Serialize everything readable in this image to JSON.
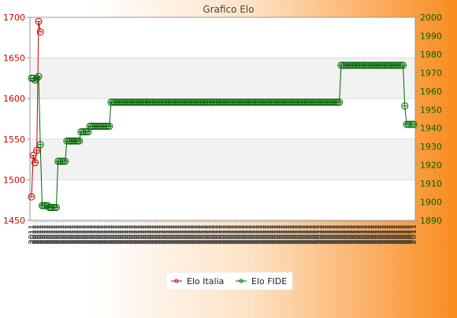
{
  "chart_data": {
    "type": "line",
    "title": "Grafico Elo",
    "left_axis": {
      "ylim": [
        1450,
        1700
      ],
      "ticks": [
        1450,
        1500,
        1550,
        1600,
        1650,
        1700
      ],
      "color": "#cc0000"
    },
    "right_axis": {
      "ylim": [
        1890,
        2000
      ],
      "ticks": [
        1890,
        1900,
        1910,
        1920,
        1930,
        1940,
        1950,
        1960,
        1970,
        1980,
        1990,
        2000
      ],
      "color": "#006600"
    },
    "grid": true,
    "legend": "bottom-center",
    "x_tick_label": "2011",
    "series": [
      {
        "name": "Elo Italia",
        "axis": "left",
        "color": "#cc0000",
        "values": [
          1479,
          1530,
          1521,
          1536,
          1695,
          1682
        ]
      },
      {
        "name": "Elo FIDE",
        "axis": "right",
        "color": "#006600",
        "values": [
          1967,
          1967,
          1966,
          1967,
          1968,
          1931,
          1898,
          1898,
          1898,
          1898,
          1897,
          1897,
          1897,
          1897,
          1897,
          1922,
          1922,
          1922,
          1922,
          1922,
          1933,
          1933,
          1933,
          1933,
          1933,
          1933,
          1933,
          1933,
          1938,
          1938,
          1938,
          1938,
          1938,
          1941,
          1941,
          1941,
          1941,
          1941,
          1941,
          1941,
          1941,
          1941,
          1941,
          1941,
          1941,
          1954,
          1954,
          1954,
          1954,
          1954,
          1954,
          1954,
          1954,
          1954,
          1954,
          1954,
          1954,
          1954,
          1954,
          1954,
          1954,
          1954,
          1954,
          1954,
          1954,
          1954,
          1954,
          1954,
          1954,
          1954,
          1954,
          1954,
          1954,
          1954,
          1954,
          1954,
          1954,
          1954,
          1954,
          1954,
          1954,
          1954,
          1954,
          1954,
          1954,
          1954,
          1954,
          1954,
          1954,
          1954,
          1954,
          1954,
          1954,
          1954,
          1954,
          1954,
          1954,
          1954,
          1954,
          1954,
          1954,
          1954,
          1954,
          1954,
          1954,
          1954,
          1954,
          1954,
          1954,
          1954,
          1954,
          1954,
          1954,
          1954,
          1954,
          1954,
          1954,
          1954,
          1954,
          1954,
          1954,
          1954,
          1954,
          1954,
          1954,
          1954,
          1954,
          1954,
          1954,
          1954,
          1954,
          1954,
          1954,
          1954,
          1954,
          1954,
          1954,
          1954,
          1954,
          1954,
          1954,
          1954,
          1954,
          1954,
          1954,
          1954,
          1954,
          1954,
          1954,
          1954,
          1954,
          1954,
          1954,
          1954,
          1954,
          1954,
          1954,
          1954,
          1954,
          1954,
          1954,
          1954,
          1954,
          1954,
          1954,
          1954,
          1954,
          1954,
          1954,
          1954,
          1954,
          1954,
          1954,
          1954,
          1954,
          1974,
          1974,
          1974,
          1974,
          1974,
          1974,
          1974,
          1974,
          1974,
          1974,
          1974,
          1974,
          1974,
          1974,
          1974,
          1974,
          1974,
          1974,
          1974,
          1974,
          1974,
          1974,
          1974,
          1974,
          1974,
          1974,
          1974,
          1974,
          1974,
          1974,
          1974,
          1974,
          1974,
          1974,
          1974,
          1974,
          1952,
          1942,
          1942,
          1942,
          1942,
          1942
        ]
      }
    ]
  }
}
